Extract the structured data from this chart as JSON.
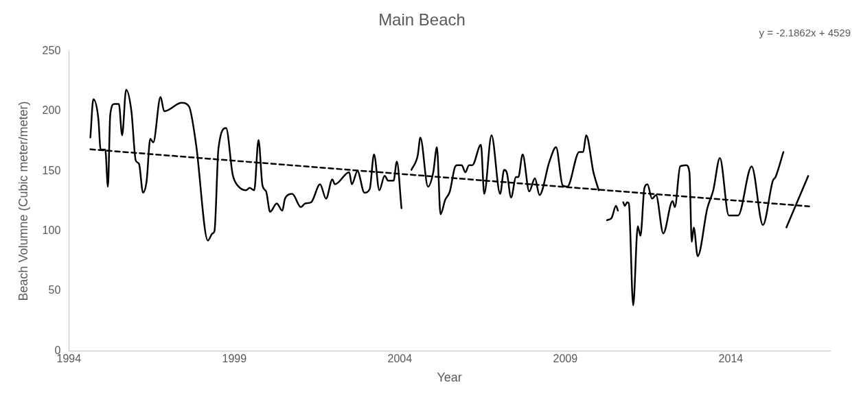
{
  "chart_data": {
    "type": "line",
    "title": "Main Beach",
    "xlabel": "Year",
    "ylabel": "Beach Volumne (Cubic meter/meter)",
    "annotations": [
      "y = -2.1862x + 4529"
    ],
    "xlim": [
      1994,
      2017
    ],
    "xticks": [
      1994,
      1999,
      2004,
      2009,
      2014
    ],
    "ylim": [
      0,
      250
    ],
    "yticks": [
      0,
      50,
      100,
      150,
      200,
      250
    ],
    "grid": false,
    "legend": false,
    "marker": "none",
    "series": [
      {
        "color": "#000000",
        "line_style": "solid",
        "x": [
          1994.65,
          1994.74,
          1994.89,
          1994.96,
          1995.1,
          1995.18,
          1995.25,
          1995.37,
          1995.51,
          1995.61,
          1995.73,
          1995.89,
          1996.02,
          1996.12,
          1996.24,
          1996.35,
          1996.46,
          1996.55,
          1996.77,
          1996.88,
          1997.41,
          1997.63,
          1997.84,
          1998.2,
          1998.34,
          1998.4,
          1998.52,
          1998.75,
          1998.95,
          1999.1,
          1999.35,
          1999.46,
          1999.6,
          1999.73,
          1999.85,
          1999.96,
          2000.08,
          2000.28,
          2000.45,
          2000.53,
          2000.75,
          2001.01,
          2001.14,
          2001.32,
          2001.59,
          2001.77,
          2001.96,
          2002.04,
          2002.47,
          2002.55,
          2002.72,
          2002.93,
          2003.09,
          2003.22,
          2003.38,
          2003.54,
          2003.65,
          2003.81,
          2003.91,
          2004.05,
          2004.2,
          2004.35,
          2004.54,
          2004.62,
          2004.85,
          2005.01,
          2005.12,
          2005.23,
          2005.37,
          2005.51,
          2005.66,
          2005.73,
          2005.87,
          2005.98,
          2006.09,
          2006.19,
          2006.45,
          2006.55,
          2006.77,
          2007.03,
          2007.15,
          2007.23,
          2007.36,
          2007.51,
          2007.58,
          2007.71,
          2007.91,
          2008.08,
          2008.22,
          2008.52,
          2008.72,
          2008.92,
          2009.06,
          2009.42,
          2009.54,
          2009.63,
          2009.85,
          2010.01,
          2010.13,
          2010.26,
          2010.4,
          2010.53,
          2010.59,
          2010.67,
          2010.75,
          2010.8,
          2010.87,
          2010.92,
          2011.05,
          2011.19,
          2011.27,
          2011.39,
          2011.48,
          2011.62,
          2011.74,
          2011.96,
          2012.24,
          2012.31,
          2012.47,
          2012.65,
          2012.75,
          2012.82,
          2012.88,
          2013.0,
          2013.29,
          2013.47,
          2013.67,
          2013.94,
          2014.22,
          2014.63,
          2014.97,
          2015.27,
          2015.35,
          2015.59,
          2015.64,
          2015.68,
          2016.34
        ],
        "values": [
          178,
          210,
          194,
          168,
          168,
          137,
          197,
          206,
          206,
          180,
          218,
          200,
          159,
          156,
          132,
          142,
          177,
          174,
          212,
          200,
          207,
          204,
          173,
          92,
          98,
          100,
          169,
          186,
          147,
          138,
          134,
          136,
          134,
          176,
          138,
          133,
          116,
          123,
          117,
          127,
          131,
          120,
          123,
          124,
          139,
          127,
          143,
          139,
          149,
          139,
          150,
          132,
          135,
          164,
          134,
          146,
          142,
          142,
          158,
          119,
          null,
          151,
          163,
          178,
          137,
          149,
          170,
          114,
          126,
          133,
          153,
          155,
          155,
          149,
          155,
          155,
          172,
          131,
          180,
          131,
          151,
          149,
          128,
          145,
          145,
          164,
          133,
          144,
          130,
          158,
          170,
          138,
          137,
          166,
          166,
          180,
          149,
          134,
          null,
          109,
          111,
          121,
          117,
          null,
          124,
          121,
          124,
          123,
          38,
          104,
          96,
          136,
          139,
          127,
          130,
          98,
          125,
          120,
          154,
          155,
          149,
          91,
          103,
          79,
          119,
          134,
          161,
          113,
          113,
          154,
          105,
          142,
          145,
          166,
          null,
          103,
          146
        ]
      },
      {
        "type": "line",
        "color": "#000000",
        "line_style": "dashed",
        "x": [
          1994.65,
          2016.37
        ],
        "values": [
          168.2,
          120.6
        ]
      }
    ]
  }
}
